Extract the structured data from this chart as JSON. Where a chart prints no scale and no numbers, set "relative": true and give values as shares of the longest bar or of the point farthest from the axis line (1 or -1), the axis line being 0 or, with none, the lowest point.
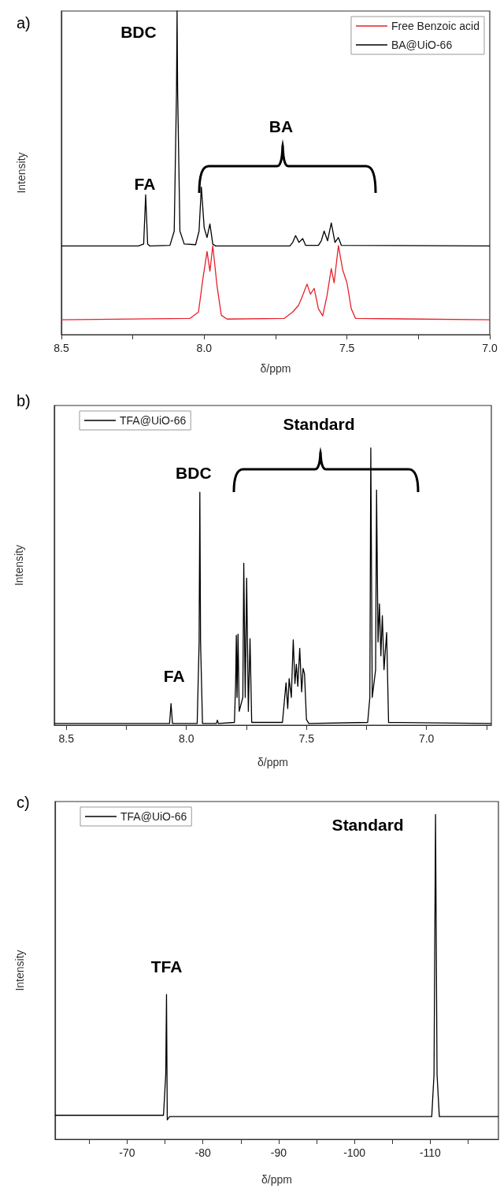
{
  "chart_data": [
    {
      "type": "line",
      "title": "a)",
      "xlabel": "δ/ppm",
      "ylabel": "Intensity",
      "relative": true,
      "tick_labels": "x",
      "marker": "none",
      "legend": "top right",
      "xlim": [
        8.5,
        7.0
      ],
      "xticks": [
        {
          "value": 8.5,
          "label": "8.5"
        },
        {
          "value": 8.25,
          "label": null
        },
        {
          "value": 8,
          "label": "8.0"
        },
        {
          "value": 7.75,
          "label": null
        },
        {
          "value": 7.5,
          "label": "7.5"
        },
        {
          "value": 7.25,
          "label": null
        },
        {
          "value": 7,
          "label": "7.0"
        }
      ],
      "annotations": [
        {
          "text": "FA",
          "x": 8.205,
          "y": 0.432
        },
        {
          "text": "BDC",
          "x": 8.095,
          "y": 1.0
        },
        "BA"
      ],
      "series": [
        {
          "name": "Free Benzoic acid",
          "color": "#e8202a",
          "x": [
            8.5,
            8.05,
            8.02,
            8.005,
            7.99,
            7.98,
            7.97,
            7.955,
            7.94,
            7.92,
            7.72,
            7.69,
            7.67,
            7.66,
            7.64,
            7.628,
            7.615,
            7.6,
            7.585,
            7.57,
            7.555,
            7.545,
            7.53,
            7.515,
            7.5,
            7.485,
            7.47,
            7.0
          ],
          "values": [
            0.046,
            0.05,
            0.07,
            0.17,
            0.257,
            0.196,
            0.275,
            0.15,
            0.06,
            0.048,
            0.05,
            0.07,
            0.09,
            0.11,
            0.156,
            0.125,
            0.143,
            0.08,
            0.058,
            0.12,
            0.204,
            0.16,
            0.275,
            0.2,
            0.16,
            0.08,
            0.05,
            0.046
          ]
        },
        {
          "name": "BA@UiO-66",
          "color": "#000000",
          "x": [
            8.5,
            8.23,
            8.212,
            8.205,
            8.198,
            8.19,
            8.12,
            8.105,
            8.097,
            8.095,
            8.093,
            8.085,
            8.07,
            8.03,
            8.018,
            8.01,
            8.0,
            7.99,
            7.98,
            7.97,
            7.96,
            7.7,
            7.69,
            7.68,
            7.668,
            7.655,
            7.645,
            7.6,
            7.59,
            7.58,
            7.568,
            7.555,
            7.542,
            7.53,
            7.52,
            7.0
          ],
          "values": [
            0.274,
            0.274,
            0.28,
            0.432,
            0.28,
            0.274,
            0.276,
            0.32,
            0.75,
            1.0,
            0.75,
            0.32,
            0.28,
            0.278,
            0.32,
            0.456,
            0.33,
            0.3,
            0.342,
            0.28,
            0.274,
            0.274,
            0.285,
            0.306,
            0.285,
            0.297,
            0.276,
            0.276,
            0.29,
            0.32,
            0.29,
            0.345,
            0.285,
            0.3,
            0.276,
            0.274
          ]
        }
      ]
    },
    {
      "type": "line",
      "title": "b)",
      "xlabel": "δ/ppm",
      "ylabel": "Intensity",
      "relative": true,
      "tick_labels": "x",
      "marker": "none",
      "legend": "top left",
      "xlim": [
        8.55,
        6.73
      ],
      "xticks": [
        {
          "value": 8.5,
          "label": "8.5"
        },
        {
          "value": 8.25,
          "label": null
        },
        {
          "value": 8,
          "label": "8.0"
        },
        {
          "value": 7.75,
          "label": null
        },
        {
          "value": 7.5,
          "label": "7.5"
        },
        {
          "value": 7.25,
          "label": null
        },
        {
          "value": 7,
          "label": "7.0"
        },
        {
          "value": 6.75,
          "label": null
        }
      ],
      "annotations": [
        {
          "text": "FA",
          "x": 8.064,
          "y": 0.078
        },
        {
          "text": "BDC",
          "x": 7.944,
          "y": 0.84
        },
        "Standard"
      ],
      "series": [
        {
          "name": "TFA@UiO-66",
          "color": "#000000",
          "x": [
            8.55,
            8.07,
            8.064,
            8.058,
            7.955,
            7.947,
            7.944,
            7.941,
            7.933,
            7.875,
            7.871,
            7.867,
            7.8,
            7.795,
            7.792,
            7.789,
            7.785,
            7.78,
            7.765,
            7.761,
            7.755,
            7.749,
            7.742,
            7.735,
            7.728,
            7.6,
            7.585,
            7.578,
            7.572,
            7.563,
            7.555,
            7.548,
            7.542,
            7.536,
            7.528,
            7.52,
            7.514,
            7.508,
            7.5,
            7.49,
            7.245,
            7.236,
            7.232,
            7.226,
            7.212,
            7.208,
            7.202,
            7.196,
            7.19,
            7.184,
            7.177,
            7.166,
            7.158,
            6.73
          ],
          "values": [
            0.006,
            0.006,
            0.078,
            0.006,
            0.006,
            0.3,
            0.84,
            0.3,
            0.006,
            0.006,
            0.018,
            0.006,
            0.01,
            0.15,
            0.324,
            0.1,
            0.328,
            0.05,
            0.1,
            0.584,
            0.1,
            0.53,
            0.05,
            0.312,
            0.01,
            0.01,
            0.153,
            0.06,
            0.168,
            0.1,
            0.308,
            0.15,
            0.22,
            0.14,
            0.277,
            0.12,
            0.205,
            0.185,
            0.02,
            0.006,
            0.01,
            0.1,
            1.0,
            0.1,
            0.2,
            0.848,
            0.3,
            0.4375,
            0.25,
            0.395,
            0.2,
            0.334,
            0.01,
            0.006
          ]
        }
      ]
    },
    {
      "type": "line",
      "title": "c)",
      "xlabel": "δ/ppm",
      "ylabel": "Intensity",
      "relative": true,
      "tick_labels": "x",
      "marker": "none",
      "legend": "top left",
      "xlim": [
        -60.5,
        -119
      ],
      "xticks": [
        {
          "value": -65,
          "label": null
        },
        -70,
        {
          "value": -75,
          "label": null
        },
        -80,
        {
          "value": -85,
          "label": null
        },
        -90,
        {
          "value": -95,
          "label": null
        },
        -100,
        {
          "value": -105,
          "label": null
        },
        -110,
        {
          "value": -115,
          "label": null
        }
      ],
      "annotations": [
        {
          "text": "TFA",
          "x": -75.2,
          "y": 0.446
        },
        {
          "text": "Standard",
          "x": -110.7,
          "y": 1.0
        }
      ],
      "series": [
        {
          "name": "TFA@UiO-66",
          "color": "#000000",
          "x": [
            -60.5,
            -74.8,
            -75.1,
            -75.2,
            -75.3,
            -75.6,
            -110.2,
            -110.5,
            -110.7,
            -110.9,
            -111.2,
            -119
          ],
          "values": [
            0.074,
            0.074,
            0.2,
            0.446,
            0.06,
            0.07,
            0.07,
            0.2,
            1.0,
            0.2,
            0.07,
            0.07
          ]
        }
      ]
    }
  ]
}
